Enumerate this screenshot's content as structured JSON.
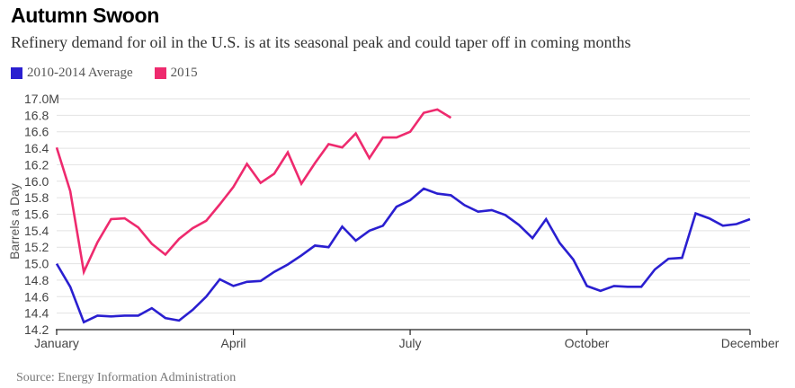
{
  "header": {
    "title": "Autumn Swoon",
    "subtitle": "Refinery demand for oil in the U.S. is at its seasonal peak and could taper off in coming months"
  },
  "footer": {
    "source": "Source: Energy Information Administration"
  },
  "colors": {
    "avg": "#2a1fd0",
    "y2015": "#ee2a6e",
    "grid": "#e2e2e2",
    "axis": "#222222"
  },
  "chart_data": {
    "type": "line",
    "title": "Autumn Swoon",
    "xlabel": "",
    "ylabel": "Barrels a Day",
    "x_tick_labels": [
      "January",
      "April",
      "July",
      "October",
      "December"
    ],
    "x_tick_weeks": [
      1,
      14,
      27,
      40,
      52
    ],
    "xlim": [
      1,
      52
    ],
    "y_tick_labels": [
      "17.0M",
      "16.8",
      "16.6",
      "16.4",
      "16.2",
      "16.0",
      "15.8",
      "15.6",
      "15.4",
      "15.2",
      "15.0",
      "14.8",
      "14.6",
      "14.4",
      "14.2"
    ],
    "ylim": [
      14.2,
      17.0
    ],
    "grid": true,
    "legend_position": "top-left",
    "series": [
      {
        "name": "2010-2014 Average",
        "color": "#2a1fd0",
        "x": [
          1,
          2,
          3,
          4,
          5,
          6,
          7,
          8,
          9,
          10,
          11,
          12,
          13,
          14,
          15,
          16,
          17,
          18,
          19,
          20,
          21,
          22,
          23,
          24,
          25,
          26,
          27,
          28,
          29,
          30,
          31,
          32,
          33,
          34,
          35,
          36,
          37,
          38,
          39,
          40,
          41,
          42,
          43,
          44,
          45,
          46,
          47,
          48,
          49,
          50,
          51,
          52
        ],
        "values": [
          15.0,
          14.72,
          14.29,
          14.37,
          14.36,
          14.37,
          14.37,
          14.46,
          14.34,
          14.31,
          14.44,
          14.6,
          14.81,
          14.73,
          14.78,
          14.79,
          14.9,
          14.99,
          15.1,
          15.22,
          15.2,
          15.45,
          15.28,
          15.4,
          15.46,
          15.69,
          15.77,
          15.91,
          15.85,
          15.83,
          15.71,
          15.63,
          15.65,
          15.59,
          15.47,
          15.31,
          15.54,
          15.25,
          15.05,
          14.73,
          14.67,
          14.73,
          14.72,
          14.72,
          14.93,
          15.06,
          15.07,
          15.61,
          15.55,
          15.46,
          15.48,
          15.54
        ]
      },
      {
        "name": "2015",
        "color": "#ee2a6e",
        "x": [
          1,
          2,
          3,
          4,
          5,
          6,
          7,
          8,
          9,
          10,
          11,
          12,
          13,
          14,
          15,
          16,
          17,
          18,
          19,
          20,
          21,
          22,
          23,
          24,
          25,
          26,
          27,
          28,
          29,
          30
        ],
        "values": [
          16.41,
          15.88,
          14.9,
          15.26,
          15.54,
          15.55,
          15.44,
          15.24,
          15.11,
          15.3,
          15.43,
          15.52,
          15.72,
          15.93,
          16.21,
          15.98,
          16.09,
          16.35,
          15.97,
          16.22,
          16.45,
          16.41,
          16.58,
          16.28,
          16.53,
          16.53,
          16.6,
          16.83,
          16.87,
          16.77
        ]
      }
    ]
  }
}
